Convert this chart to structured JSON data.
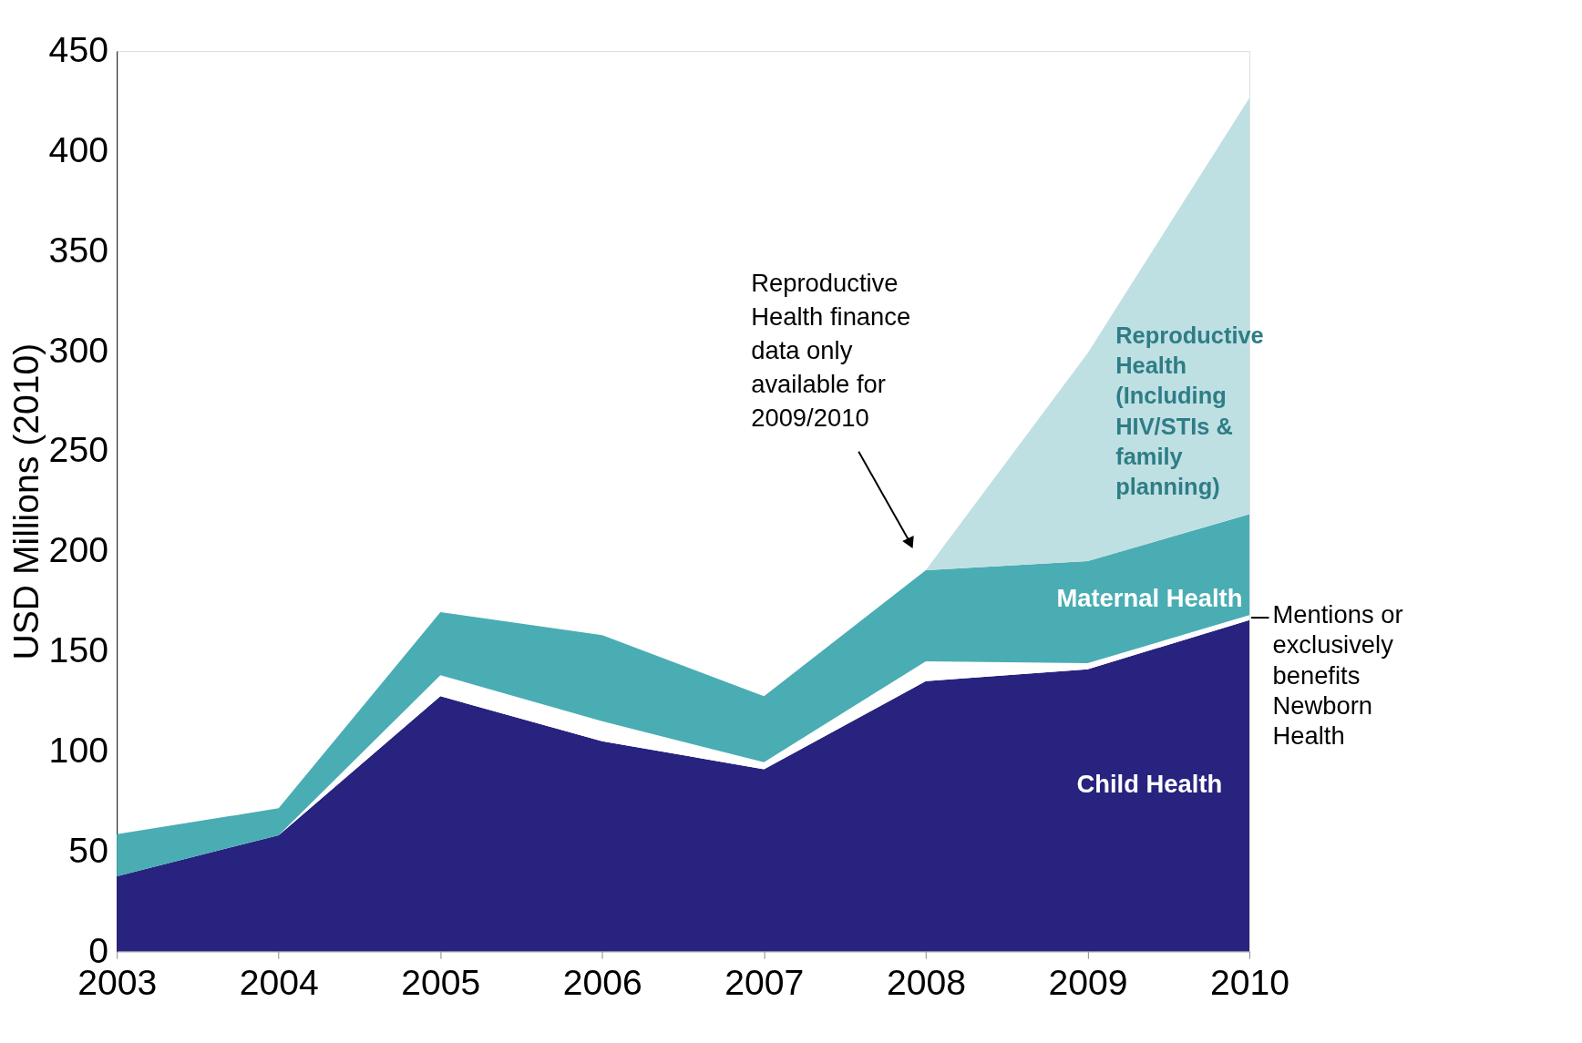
{
  "chart_data": {
    "type": "area",
    "stacked": true,
    "ylabel": "USD Millions (2010)",
    "categories": [
      "2003",
      "2004",
      "2005",
      "2006",
      "2007",
      "2008",
      "2009",
      "2010"
    ],
    "ylim": [
      0,
      450
    ],
    "yticks": [
      0,
      50,
      100,
      150,
      200,
      250,
      300,
      350,
      400,
      450
    ],
    "grid": false,
    "series": [
      {
        "name": "Child Health",
        "color": "#27237f",
        "values": [
          37.5,
          58,
          127.5,
          105,
          91,
          135,
          141,
          165.5
        ]
      },
      {
        "name": "Mentions or exclusively benefits Newborn Health",
        "color": "#ffffff",
        "values": [
          0,
          0,
          10.5,
          10,
          3.5,
          10,
          3,
          2.5
        ]
      },
      {
        "name": "Maternal Health",
        "color": "#4aadb3",
        "values": [
          21,
          13.5,
          31.5,
          43,
          33,
          45.5,
          51,
          50.5
        ]
      },
      {
        "name": "Reproductive Health (Including HIV/STIs & family planning)",
        "color": "#bfe0e3",
        "values": [
          null,
          null,
          null,
          null,
          null,
          0,
          104,
          208
        ]
      }
    ],
    "annotations": [
      "Reproductive Health finance data only available for 2009/2010"
    ]
  }
}
